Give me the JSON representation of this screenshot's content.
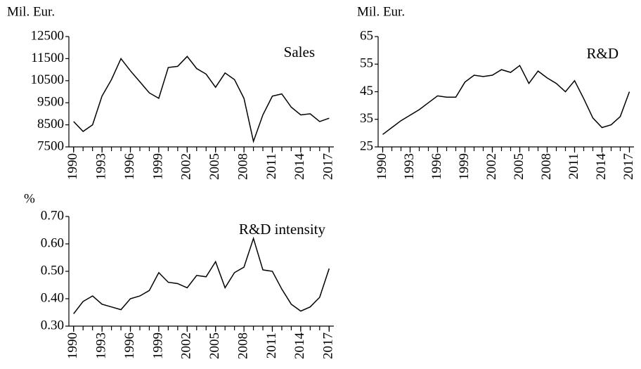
{
  "chart_data": [
    {
      "type": "line",
      "ylabel": "Mil. Eur.",
      "annotation": "Sales",
      "x": [
        1990,
        1991,
        1992,
        1993,
        1994,
        1995,
        1996,
        1997,
        1998,
        1999,
        2000,
        2001,
        2002,
        2003,
        2004,
        2005,
        2006,
        2007,
        2008,
        2009,
        2010,
        2011,
        2012,
        2013,
        2014,
        2015,
        2016,
        2017
      ],
      "xlim": [
        1989.5,
        2017.5
      ],
      "xticks": [
        1990,
        1993,
        1996,
        1999,
        2002,
        2005,
        2008,
        2011,
        2014,
        2017
      ],
      "values": [
        8650,
        8200,
        8500,
        9800,
        10550,
        11500,
        10950,
        10450,
        9950,
        9700,
        11100,
        11150,
        11600,
        11050,
        10800,
        10200,
        10850,
        10550,
        9700,
        7750,
        8950,
        9800,
        9900,
        9300,
        8950,
        9000,
        8650,
        8800
      ],
      "color": "#000000",
      "ylim": [
        7500,
        12500
      ],
      "yticks": [
        7500,
        8500,
        9500,
        10500,
        11500,
        12500
      ]
    },
    {
      "type": "line",
      "ylabel": "Mil. Eur.",
      "annotation": "R&D",
      "x": [
        1990,
        1991,
        1992,
        1993,
        1994,
        1995,
        1996,
        1997,
        1998,
        1999,
        2000,
        2001,
        2002,
        2003,
        2004,
        2005,
        2006,
        2007,
        2008,
        2009,
        2010,
        2011,
        2012,
        2013,
        2014,
        2015,
        2016,
        2017
      ],
      "xlim": [
        1989.5,
        2017.5
      ],
      "xticks": [
        1990,
        1993,
        1996,
        1999,
        2002,
        2005,
        2008,
        2011,
        2014,
        2017
      ],
      "values": [
        29.5,
        32,
        34.5,
        36.5,
        38.5,
        41,
        43.5,
        43,
        43,
        48.5,
        51,
        50.5,
        51,
        53,
        52,
        54.5,
        48,
        52.5,
        50,
        48,
        45,
        49,
        42.5,
        35.5,
        32,
        33,
        36,
        45
      ],
      "color": "#000000",
      "ylim": [
        25,
        65
      ],
      "yticks": [
        25,
        35,
        45,
        55,
        65
      ]
    },
    {
      "type": "line",
      "ylabel": "%",
      "annotation": "R&D intensity",
      "x": [
        1990,
        1991,
        1992,
        1993,
        1994,
        1995,
        1996,
        1997,
        1998,
        1999,
        2000,
        2001,
        2002,
        2003,
        2004,
        2005,
        2006,
        2007,
        2008,
        2009,
        2010,
        2011,
        2012,
        2013,
        2014,
        2015,
        2016,
        2017
      ],
      "xlim": [
        1989.5,
        2017.5
      ],
      "xticks": [
        1990,
        1993,
        1996,
        1999,
        2002,
        2005,
        2008,
        2011,
        2014,
        2017
      ],
      "values": [
        0.345,
        0.39,
        0.41,
        0.38,
        0.37,
        0.36,
        0.4,
        0.41,
        0.43,
        0.495,
        0.46,
        0.455,
        0.44,
        0.485,
        0.48,
        0.535,
        0.44,
        0.495,
        0.515,
        0.62,
        0.505,
        0.5,
        0.435,
        0.38,
        0.355,
        0.37,
        0.405,
        0.51
      ],
      "color": "#000000",
      "ylim": [
        0.3,
        0.7
      ],
      "yticks": [
        {
          "value": 0.3,
          "label": "0.30"
        },
        {
          "value": 0.4,
          "label": "0.40"
        },
        {
          "value": 0.5,
          "label": "0.50"
        },
        {
          "value": 0.6,
          "label": "0.60"
        },
        {
          "value": 0.7,
          "label": "0.70"
        }
      ]
    }
  ]
}
